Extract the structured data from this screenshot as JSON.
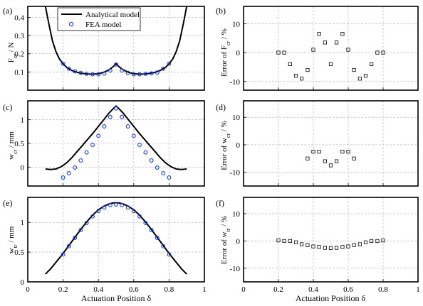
{
  "chart_data": [
    {
      "panel": "(a)",
      "type": "line",
      "ylabel": "F_cr / N",
      "ylim": [
        0,
        0.46
      ],
      "xlim": [
        0,
        1
      ],
      "yticks": [
        0.1,
        0.2,
        0.3,
        0.4
      ],
      "ytick_labels": [
        "0.1",
        "0.2",
        "0.3",
        "0.4"
      ],
      "xticks": [
        0,
        0.2,
        0.4,
        0.6,
        0.8,
        1
      ],
      "xtick_labels": [
        "",
        "",
        "",
        "",
        "",
        ""
      ],
      "grid": true,
      "legend": {
        "placement": "top-left",
        "entries": [
          "Analytical model",
          "FEA model"
        ]
      },
      "series": [
        {
          "name": "Analytical model",
          "style": "line",
          "x": [
            0.1,
            0.12,
            0.14,
            0.16,
            0.18,
            0.2,
            0.22,
            0.25,
            0.28,
            0.31,
            0.34,
            0.37,
            0.4,
            0.43,
            0.46,
            0.48,
            0.49,
            0.5,
            0.51,
            0.52,
            0.54,
            0.57,
            0.6,
            0.63,
            0.66,
            0.69,
            0.72,
            0.75,
            0.78,
            0.8,
            0.82,
            0.84,
            0.86,
            0.88,
            0.9
          ],
          "y": [
            0.46,
            0.36,
            0.27,
            0.21,
            0.17,
            0.145,
            0.125,
            0.108,
            0.098,
            0.092,
            0.089,
            0.088,
            0.09,
            0.098,
            0.112,
            0.126,
            0.135,
            0.145,
            0.135,
            0.126,
            0.112,
            0.098,
            0.09,
            0.088,
            0.089,
            0.092,
            0.098,
            0.108,
            0.125,
            0.145,
            0.17,
            0.21,
            0.27,
            0.36,
            0.46
          ]
        },
        {
          "name": "FEA model",
          "style": "circle",
          "x": [
            0.2,
            0.233,
            0.267,
            0.3,
            0.333,
            0.367,
            0.4,
            0.433,
            0.467,
            0.5,
            0.533,
            0.567,
            0.6,
            0.633,
            0.667,
            0.7,
            0.733,
            0.767,
            0.8
          ],
          "y": [
            0.145,
            0.118,
            0.103,
            0.095,
            0.09,
            0.087,
            0.087,
            0.092,
            0.108,
            0.141,
            0.108,
            0.095,
            0.087,
            0.087,
            0.09,
            0.092,
            0.097,
            0.118,
            0.145
          ]
        }
      ]
    },
    {
      "panel": "(b)",
      "type": "scatter",
      "ylabel": "Error of F_cr / %",
      "ylim": [
        -13,
        16
      ],
      "xlim": [
        0,
        1
      ],
      "yticks": [
        -10,
        0,
        10
      ],
      "ytick_labels": [
        "-10",
        "0",
        "10"
      ],
      "xticks": [
        0,
        0.2,
        0.4,
        0.6,
        0.8,
        1
      ],
      "xtick_labels": [
        "",
        "",
        "",
        "",
        "",
        ""
      ],
      "grid": true,
      "series": [
        {
          "style": "square",
          "x": [
            0.2,
            0.233,
            0.267,
            0.3,
            0.333,
            0.367,
            0.4,
            0.433,
            0.467,
            0.5,
            0.533,
            0.567,
            0.6,
            0.633,
            0.667,
            0.7,
            0.733,
            0.767,
            0.8
          ],
          "y": [
            0,
            0,
            -4,
            -8,
            -9,
            -6,
            1,
            6.5,
            3.5,
            -4,
            3.5,
            6.5,
            1,
            -6,
            -9,
            -8,
            -4,
            0,
            0
          ]
        }
      ]
    },
    {
      "panel": "(c)",
      "type": "line",
      "ylabel": "w_cr / mm",
      "ylim": [
        -0.4,
        1.4
      ],
      "xlim": [
        0,
        1
      ],
      "yticks": [
        0,
        0.5,
        1
      ],
      "ytick_labels": [
        "0",
        "0.5",
        "1"
      ],
      "xticks": [
        0,
        0.2,
        0.4,
        0.6,
        0.8,
        1
      ],
      "xtick_labels": [
        "",
        "",
        "",
        "",
        "",
        ""
      ],
      "grid": true,
      "series": [
        {
          "name": "Analytical model",
          "style": "line",
          "x": [
            0.1,
            0.13,
            0.16,
            0.19,
            0.22,
            0.25,
            0.28,
            0.31,
            0.34,
            0.37,
            0.4,
            0.43,
            0.46,
            0.48,
            0.5,
            0.52,
            0.54,
            0.57,
            0.6,
            0.63,
            0.66,
            0.69,
            0.72,
            0.75,
            0.78,
            0.81,
            0.84,
            0.87,
            0.9
          ],
          "y": [
            -0.04,
            -0.05,
            -0.04,
            0.01,
            0.09,
            0.2,
            0.33,
            0.46,
            0.59,
            0.72,
            0.86,
            1.0,
            1.14,
            1.22,
            1.29,
            1.22,
            1.14,
            1.0,
            0.86,
            0.72,
            0.59,
            0.46,
            0.33,
            0.2,
            0.09,
            0.01,
            -0.04,
            -0.05,
            -0.04
          ]
        },
        {
          "name": "FEA model",
          "style": "circle",
          "x": [
            0.2,
            0.233,
            0.267,
            0.3,
            0.333,
            0.367,
            0.4,
            0.433,
            0.467,
            0.5,
            0.533,
            0.567,
            0.6,
            0.633,
            0.667,
            0.7,
            0.733,
            0.767,
            0.8
          ],
          "y": [
            -0.22,
            -0.13,
            -0.01,
            0.14,
            0.31,
            0.47,
            0.66,
            0.86,
            1.06,
            1.24,
            1.06,
            0.86,
            0.66,
            0.47,
            0.31,
            0.14,
            -0.01,
            -0.13,
            -0.22
          ]
        }
      ]
    },
    {
      "panel": "(d)",
      "type": "scatter",
      "ylabel": "Error of w_cr / %",
      "ylim": [
        -15,
        16
      ],
      "xlim": [
        0,
        1
      ],
      "yticks": [
        -10,
        0,
        10
      ],
      "ytick_labels": [
        "-10",
        "0",
        "10"
      ],
      "xticks": [
        0,
        0.2,
        0.4,
        0.6,
        0.8,
        1
      ],
      "xtick_labels": [
        "",
        "",
        "",
        "",
        "",
        ""
      ],
      "grid": true,
      "series": [
        {
          "style": "square",
          "x": [
            0.367,
            0.4,
            0.433,
            0.467,
            0.5,
            0.533,
            0.567,
            0.6,
            0.633
          ],
          "y": [
            -5,
            -2.5,
            -2.5,
            -6,
            -7.5,
            -6,
            -2.5,
            -2.5,
            -5
          ]
        }
      ]
    },
    {
      "panel": "(e)",
      "type": "line",
      "ylabel": "w_tr / mm",
      "ylim": [
        0,
        1.42
      ],
      "xlim": [
        0,
        1
      ],
      "yticks": [
        0,
        0.5,
        1
      ],
      "ytick_labels": [
        "0",
        "0.5",
        "1"
      ],
      "xticks": [
        0,
        0.2,
        0.4,
        0.6,
        0.8,
        1
      ],
      "xtick_labels": [
        "0",
        "0.2",
        "0.4",
        "0.6",
        "0.8",
        "1"
      ],
      "xlabel": "Actuation Position δ",
      "grid": true,
      "series": [
        {
          "name": "Analytical model",
          "style": "line",
          "x": [
            0.1,
            0.13,
            0.16,
            0.19,
            0.22,
            0.25,
            0.28,
            0.31,
            0.34,
            0.37,
            0.4,
            0.43,
            0.46,
            0.48,
            0.5,
            0.52,
            0.54,
            0.57,
            0.6,
            0.63,
            0.66,
            0.69,
            0.72,
            0.75,
            0.78,
            0.81,
            0.84,
            0.87,
            0.9
          ],
          "y": [
            0.13,
            0.22,
            0.33,
            0.44,
            0.56,
            0.68,
            0.8,
            0.92,
            1.03,
            1.13,
            1.21,
            1.27,
            1.31,
            1.325,
            1.33,
            1.325,
            1.31,
            1.27,
            1.21,
            1.13,
            1.03,
            0.92,
            0.8,
            0.68,
            0.56,
            0.44,
            0.33,
            0.22,
            0.13
          ]
        },
        {
          "name": "FEA model",
          "style": "circle",
          "x": [
            0.2,
            0.233,
            0.267,
            0.3,
            0.333,
            0.367,
            0.4,
            0.433,
            0.467,
            0.5,
            0.533,
            0.567,
            0.6,
            0.633,
            0.667,
            0.7,
            0.733,
            0.767,
            0.8
          ],
          "y": [
            0.46,
            0.6,
            0.74,
            0.87,
            0.99,
            1.1,
            1.19,
            1.25,
            1.29,
            1.3,
            1.29,
            1.25,
            1.19,
            1.1,
            0.99,
            0.87,
            0.74,
            0.6,
            0.46
          ]
        }
      ]
    },
    {
      "panel": "(f)",
      "type": "scatter",
      "ylabel": "Error of w_tr / %",
      "ylim": [
        -15,
        16
      ],
      "xlim": [
        0,
        1
      ],
      "yticks": [
        -10,
        0,
        10
      ],
      "ytick_labels": [
        "-10",
        "0",
        "10"
      ],
      "xticks": [
        0,
        0.2,
        0.4,
        0.6,
        0.8,
        1
      ],
      "xtick_labels": [
        "0",
        "0.2",
        "0.4",
        "0.6",
        "0.8",
        "1"
      ],
      "xlabel": "Actuation Position δ",
      "grid": true,
      "series": [
        {
          "style": "square",
          "x": [
            0.2,
            0.233,
            0.267,
            0.3,
            0.333,
            0.367,
            0.4,
            0.433,
            0.467,
            0.5,
            0.533,
            0.567,
            0.6,
            0.633,
            0.667,
            0.7,
            0.733,
            0.767,
            0.8
          ],
          "y": [
            0.2,
            0,
            0,
            -0.5,
            -1.2,
            -1.5,
            -2,
            -2.2,
            -2.5,
            -2.6,
            -2.5,
            -2.2,
            -2,
            -1.5,
            -1.2,
            -0.5,
            0,
            0,
            0.2
          ]
        }
      ]
    }
  ]
}
